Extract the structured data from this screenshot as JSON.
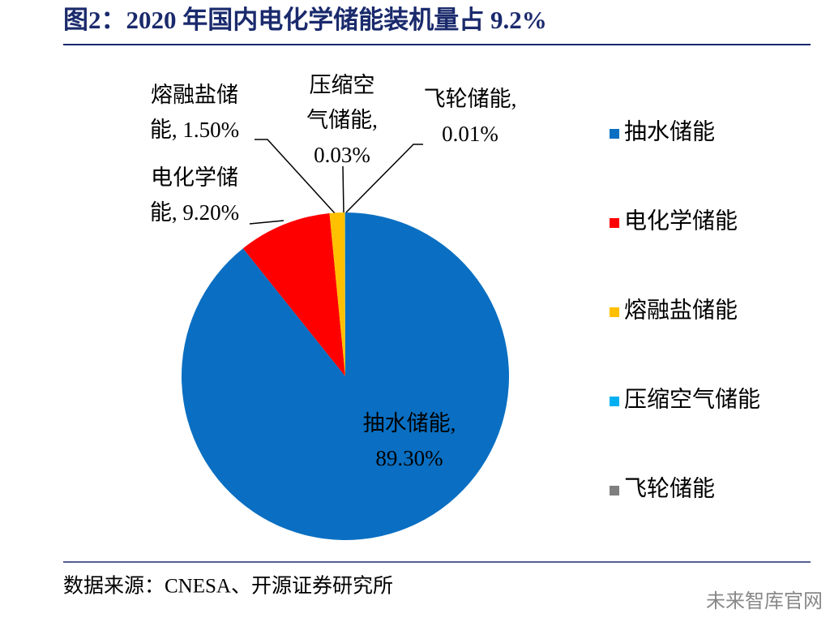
{
  "chart_data": {
    "type": "pie",
    "title": "图2：2020 年国内电化学储能装机量占 9.2%",
    "categories": [
      "抽水储能",
      "电化学储能",
      "熔融盐储能",
      "压缩空气储能",
      "飞轮储能"
    ],
    "values": [
      89.3,
      9.2,
      1.5,
      0.03,
      0.01
    ],
    "value_labels": [
      [
        "抽水储能,",
        "89.30%"
      ],
      [
        "电化学储",
        "能, 9.20%"
      ],
      [
        "熔融盐储",
        "能, 1.50%"
      ],
      [
        "压缩空",
        "气储能,",
        "0.03%"
      ],
      [
        "飞轮储能,",
        "0.01%"
      ]
    ],
    "colors": [
      "#0a6fc2",
      "#ff0000",
      "#ffc000",
      "#00b0f0",
      "#7f7f7f"
    ],
    "legend": "right",
    "source": "数据来源：CNESA、开源证券研究所",
    "watermark": "未来智库官网"
  }
}
